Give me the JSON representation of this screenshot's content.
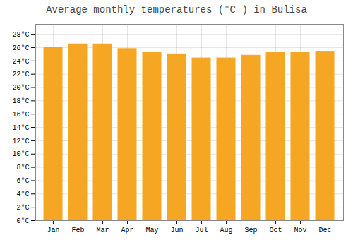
{
  "chart_data": {
    "type": "bar",
    "title": "Average monthly temperatures (°C ) in Bulisa",
    "categories": [
      "Jan",
      "Feb",
      "Mar",
      "Apr",
      "May",
      "Jun",
      "Jul",
      "Aug",
      "Sep",
      "Oct",
      "Nov",
      "Dec"
    ],
    "values": [
      26.0,
      26.5,
      26.5,
      25.8,
      25.3,
      25.0,
      24.4,
      24.4,
      24.8,
      25.2,
      25.3,
      25.4
    ],
    "color": "#F5A623",
    "ylim": [
      0,
      29.5
    ],
    "yticks": [
      {
        "value": 0,
        "label": "0°C"
      },
      {
        "value": 2,
        "label": "2°C"
      },
      {
        "value": 4,
        "label": "4°C"
      },
      {
        "value": 6,
        "label": "6°C"
      },
      {
        "value": 8,
        "label": "8°C"
      },
      {
        "value": 10,
        "label": "10°C"
      },
      {
        "value": 12,
        "label": "12°C"
      },
      {
        "value": 14,
        "label": "14°C"
      },
      {
        "value": 16,
        "label": "16°C"
      },
      {
        "value": 18,
        "label": "18°C"
      },
      {
        "value": 20,
        "label": "20°C"
      },
      {
        "value": 22,
        "label": "22°C"
      },
      {
        "value": 24,
        "label": "24°C"
      },
      {
        "value": 26,
        "label": "26°C"
      },
      {
        "value": 28,
        "label": "28°C"
      }
    ],
    "grid": true
  }
}
